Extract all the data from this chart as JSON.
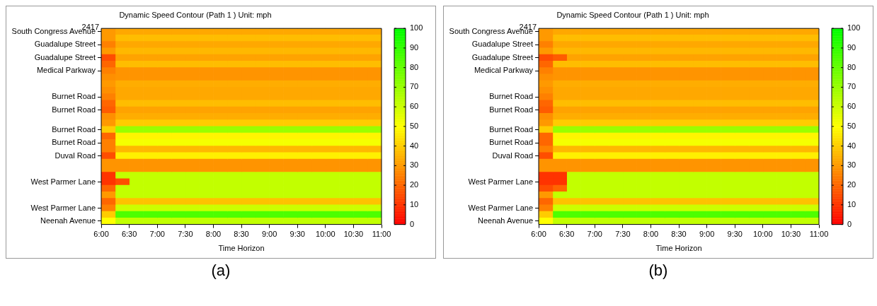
{
  "chart_data": [
    {
      "type": "heatmap",
      "title": "Dynamic Speed Contour (Path 1 ) Unit: mph",
      "xlabel": "Time Horizon",
      "x": [
        6.125,
        6.375,
        6.625,
        6.875,
        7.125,
        7.375,
        7.625,
        7.875,
        8.125,
        8.375,
        8.625,
        8.875,
        9.125,
        9.375,
        9.625,
        9.875,
        10.125,
        10.375,
        10.625,
        10.875
      ],
      "xlim": [
        6,
        11
      ],
      "xticks": [
        {
          "value": 6,
          "label": "6:00"
        },
        {
          "value": 6.5,
          "label": "6:30"
        },
        {
          "value": 7,
          "label": "7:00"
        },
        {
          "value": 7.5,
          "label": "7:30"
        },
        {
          "value": 8,
          "label": "8:00"
        },
        {
          "value": 8.5,
          "label": "8:30"
        },
        {
          "value": 9,
          "label": "9:00"
        },
        {
          "value": 9.5,
          "label": "9:30"
        },
        {
          "value": 10,
          "label": "10:00"
        },
        {
          "value": 10.5,
          "label": "10:30"
        },
        {
          "value": 11,
          "label": "11:00"
        }
      ],
      "y_categories": [
        "South Congress Avenue",
        null,
        "Guadalupe Street",
        null,
        "Guadalupe Street",
        null,
        "Medical Parkway",
        null,
        null,
        null,
        "Burnet Road",
        null,
        "Burnet Road",
        null,
        null,
        "Burnet Road",
        null,
        "Burnet Road",
        null,
        "Duval Road",
        null,
        null,
        null,
        "West Parmer Lane",
        null,
        null,
        null,
        "West Parmer Lane",
        null,
        "Neenah Avenue"
      ],
      "cells": [
        [
          30,
          33,
          33,
          33,
          33,
          33,
          33,
          33,
          33,
          33,
          33,
          33,
          33,
          33,
          33,
          33,
          33,
          33,
          33,
          33
        ],
        [
          30,
          37,
          37,
          37,
          37,
          37,
          37,
          37,
          37,
          37,
          37,
          37,
          37,
          37,
          37,
          37,
          37,
          37,
          37,
          37
        ],
        [
          25,
          33,
          33,
          33,
          33,
          33,
          33,
          33,
          33,
          33,
          33,
          33,
          33,
          33,
          33,
          33,
          33,
          33,
          33,
          33
        ],
        [
          30,
          36,
          36,
          36,
          36,
          36,
          36,
          36,
          36,
          36,
          36,
          36,
          36,
          36,
          36,
          36,
          36,
          36,
          36,
          36
        ],
        [
          15,
          32,
          32,
          32,
          32,
          32,
          32,
          32,
          32,
          32,
          32,
          32,
          32,
          32,
          32,
          32,
          32,
          32,
          32,
          32
        ],
        [
          20,
          37,
          37,
          37,
          37,
          37,
          37,
          37,
          37,
          37,
          37,
          37,
          37,
          37,
          37,
          37,
          37,
          37,
          37,
          37
        ],
        [
          25,
          29,
          29,
          29,
          29,
          29,
          29,
          29,
          29,
          29,
          29,
          29,
          29,
          29,
          29,
          29,
          29,
          29,
          29,
          29
        ],
        [
          28,
          29,
          29,
          29,
          29,
          29,
          29,
          29,
          29,
          29,
          29,
          29,
          29,
          29,
          29,
          29,
          29,
          29,
          29,
          29
        ],
        [
          30,
          34,
          34,
          34,
          34,
          34,
          34,
          34,
          34,
          34,
          34,
          34,
          34,
          34,
          34,
          34,
          34,
          34,
          34,
          34
        ],
        [
          28,
          33,
          33,
          33,
          33,
          33,
          33,
          33,
          33,
          33,
          33,
          33,
          33,
          33,
          33,
          33,
          33,
          33,
          33,
          33
        ],
        [
          25,
          33,
          33,
          33,
          33,
          33,
          33,
          33,
          33,
          33,
          33,
          33,
          33,
          33,
          33,
          33,
          33,
          33,
          33,
          33
        ],
        [
          20,
          37,
          37,
          37,
          37,
          37,
          37,
          37,
          37,
          37,
          37,
          37,
          37,
          37,
          37,
          37,
          37,
          37,
          37,
          37
        ],
        [
          18,
          32,
          32,
          32,
          32,
          32,
          32,
          32,
          32,
          32,
          32,
          32,
          32,
          32,
          32,
          32,
          32,
          32,
          32,
          32
        ],
        [
          28,
          34,
          34,
          34,
          34,
          34,
          34,
          34,
          34,
          34,
          34,
          34,
          34,
          34,
          34,
          34,
          34,
          34,
          34,
          34
        ],
        [
          30,
          40,
          40,
          40,
          40,
          40,
          40,
          40,
          40,
          40,
          40,
          40,
          40,
          40,
          40,
          40,
          40,
          40,
          40,
          40
        ],
        [
          40,
          70,
          70,
          70,
          70,
          70,
          70,
          70,
          70,
          70,
          70,
          70,
          70,
          70,
          70,
          70,
          70,
          70,
          70,
          70
        ],
        [
          20,
          48,
          48,
          48,
          48,
          48,
          48,
          48,
          48,
          48,
          48,
          48,
          48,
          48,
          48,
          48,
          48,
          48,
          48,
          48
        ],
        [
          25,
          52,
          52,
          52,
          52,
          52,
          52,
          52,
          52,
          52,
          52,
          52,
          52,
          52,
          52,
          52,
          52,
          52,
          52,
          52
        ],
        [
          25,
          36,
          36,
          36,
          36,
          36,
          36,
          36,
          36,
          36,
          36,
          36,
          36,
          36,
          36,
          36,
          36,
          36,
          36,
          36
        ],
        [
          15,
          47,
          47,
          47,
          47,
          47,
          47,
          47,
          47,
          47,
          47,
          47,
          47,
          47,
          47,
          47,
          47,
          47,
          47,
          47
        ],
        [
          29,
          29,
          29,
          29,
          29,
          29,
          29,
          29,
          29,
          29,
          29,
          29,
          29,
          29,
          29,
          29,
          29,
          29,
          29,
          29
        ],
        [
          29,
          29,
          29,
          29,
          29,
          29,
          29,
          29,
          29,
          29,
          29,
          29,
          29,
          29,
          29,
          29,
          29,
          29,
          29,
          29
        ],
        [
          10,
          62,
          62,
          62,
          62,
          62,
          62,
          62,
          62,
          62,
          62,
          62,
          62,
          62,
          62,
          62,
          62,
          62,
          62,
          62
        ],
        [
          10,
          15,
          62,
          62,
          62,
          62,
          62,
          62,
          62,
          62,
          62,
          62,
          62,
          62,
          62,
          62,
          62,
          62,
          62,
          62
        ],
        [
          20,
          62,
          62,
          62,
          62,
          62,
          62,
          62,
          62,
          62,
          62,
          62,
          62,
          62,
          62,
          62,
          62,
          62,
          62,
          62
        ],
        [
          30,
          62,
          62,
          62,
          62,
          62,
          62,
          62,
          62,
          62,
          62,
          62,
          62,
          62,
          62,
          62,
          62,
          62,
          62,
          62
        ],
        [
          20,
          38,
          38,
          38,
          38,
          38,
          38,
          38,
          38,
          38,
          38,
          38,
          38,
          38,
          38,
          38,
          38,
          38,
          38,
          38
        ],
        [
          25,
          60,
          60,
          60,
          60,
          60,
          60,
          60,
          60,
          60,
          60,
          60,
          60,
          60,
          60,
          60,
          60,
          60,
          60,
          60
        ],
        [
          40,
          85,
          85,
          85,
          85,
          85,
          85,
          85,
          85,
          85,
          85,
          85,
          85,
          85,
          85,
          85,
          85,
          85,
          85,
          85
        ],
        [
          50,
          62,
          62,
          62,
          62,
          62,
          62,
          62,
          62,
          62,
          62,
          62,
          62,
          62,
          62,
          62,
          62,
          62,
          62,
          62
        ]
      ],
      "clim": [
        0,
        100
      ],
      "cticks": [
        0,
        10,
        20,
        30,
        40,
        50,
        60,
        70,
        80,
        90,
        100
      ],
      "annotations": [
        "2417",
        "(a)"
      ]
    },
    {
      "type": "heatmap",
      "title": "Dynamic Speed Contour (Path 1 ) Unit: mph",
      "xlabel": "Time Horizon",
      "x": [
        6.125,
        6.375,
        6.625,
        6.875,
        7.125,
        7.375,
        7.625,
        7.875,
        8.125,
        8.375,
        8.625,
        8.875,
        9.125,
        9.375,
        9.625,
        9.875,
        10.125,
        10.375,
        10.625,
        10.875
      ],
      "xlim": [
        6,
        11
      ],
      "xticks": [
        {
          "value": 6,
          "label": "6:00"
        },
        {
          "value": 6.5,
          "label": "6:30"
        },
        {
          "value": 7,
          "label": "7:00"
        },
        {
          "value": 7.5,
          "label": "7:30"
        },
        {
          "value": 8,
          "label": "8:00"
        },
        {
          "value": 8.5,
          "label": "8:30"
        },
        {
          "value": 9,
          "label": "9:00"
        },
        {
          "value": 9.5,
          "label": "9:30"
        },
        {
          "value": 10,
          "label": "10:00"
        },
        {
          "value": 10.5,
          "label": "10:30"
        },
        {
          "value": 11,
          "label": "11:00"
        }
      ],
      "y_categories": [
        "South Congress Avenue",
        null,
        "Guadalupe Street",
        null,
        "Guadalupe Street",
        null,
        "Medical Parkway",
        null,
        null,
        null,
        "Burnet Road",
        null,
        "Burnet Road",
        null,
        null,
        "Burnet Road",
        null,
        "Burnet Road",
        null,
        "Duval Road",
        null,
        null,
        null,
        "West Parmer Lane",
        null,
        null,
        null,
        "West Parmer Lane",
        null,
        "Neenah Avenue"
      ],
      "cells": [
        [
          30,
          33,
          33,
          33,
          33,
          33,
          33,
          33,
          33,
          33,
          33,
          33,
          33,
          33,
          33,
          33,
          33,
          33,
          33,
          33
        ],
        [
          30,
          37,
          37,
          37,
          37,
          37,
          37,
          37,
          37,
          37,
          37,
          37,
          37,
          37,
          37,
          37,
          37,
          37,
          37,
          37
        ],
        [
          25,
          33,
          33,
          33,
          33,
          33,
          33,
          33,
          33,
          33,
          33,
          33,
          33,
          33,
          33,
          33,
          33,
          33,
          33,
          33
        ],
        [
          30,
          36,
          36,
          36,
          36,
          36,
          36,
          36,
          36,
          36,
          36,
          36,
          36,
          36,
          36,
          36,
          36,
          36,
          36,
          36
        ],
        [
          15,
          18,
          32,
          32,
          32,
          32,
          32,
          32,
          32,
          32,
          32,
          32,
          32,
          32,
          32,
          32,
          32,
          32,
          32,
          32
        ],
        [
          20,
          37,
          37,
          37,
          37,
          37,
          37,
          37,
          37,
          37,
          37,
          37,
          37,
          37,
          37,
          37,
          37,
          37,
          37,
          37
        ],
        [
          25,
          29,
          29,
          29,
          29,
          29,
          29,
          29,
          29,
          29,
          29,
          29,
          29,
          29,
          29,
          29,
          29,
          29,
          29,
          29
        ],
        [
          28,
          29,
          29,
          29,
          29,
          29,
          29,
          29,
          29,
          29,
          29,
          29,
          29,
          29,
          29,
          29,
          29,
          29,
          29,
          29
        ],
        [
          30,
          34,
          34,
          34,
          34,
          34,
          34,
          34,
          34,
          34,
          34,
          34,
          34,
          34,
          34,
          34,
          34,
          34,
          34,
          34
        ],
        [
          28,
          33,
          33,
          33,
          33,
          33,
          33,
          33,
          33,
          33,
          33,
          33,
          33,
          33,
          33,
          33,
          33,
          33,
          33,
          33
        ],
        [
          25,
          33,
          33,
          33,
          33,
          33,
          33,
          33,
          33,
          33,
          33,
          33,
          33,
          33,
          33,
          33,
          33,
          33,
          33,
          33
        ],
        [
          20,
          37,
          37,
          37,
          37,
          37,
          37,
          37,
          37,
          37,
          37,
          37,
          37,
          37,
          37,
          37,
          37,
          37,
          37,
          37
        ],
        [
          18,
          32,
          32,
          32,
          32,
          32,
          32,
          32,
          32,
          32,
          32,
          32,
          32,
          32,
          32,
          32,
          32,
          32,
          32,
          32
        ],
        [
          28,
          34,
          34,
          34,
          34,
          34,
          34,
          34,
          34,
          34,
          34,
          34,
          34,
          34,
          34,
          34,
          34,
          34,
          34,
          34
        ],
        [
          30,
          40,
          40,
          40,
          40,
          40,
          40,
          40,
          40,
          40,
          40,
          40,
          40,
          40,
          40,
          40,
          40,
          40,
          40,
          40
        ],
        [
          40,
          70,
          70,
          70,
          70,
          70,
          70,
          70,
          70,
          70,
          70,
          70,
          70,
          70,
          70,
          70,
          70,
          70,
          70,
          70
        ],
        [
          20,
          48,
          48,
          48,
          48,
          48,
          48,
          48,
          48,
          48,
          48,
          48,
          48,
          48,
          48,
          48,
          48,
          48,
          48,
          48
        ],
        [
          20,
          52,
          52,
          52,
          52,
          52,
          52,
          52,
          52,
          52,
          52,
          52,
          52,
          52,
          52,
          52,
          52,
          52,
          52,
          52
        ],
        [
          25,
          36,
          36,
          36,
          36,
          36,
          36,
          36,
          36,
          36,
          36,
          36,
          36,
          36,
          36,
          36,
          36,
          36,
          36,
          36
        ],
        [
          15,
          47,
          47,
          47,
          47,
          47,
          47,
          47,
          47,
          47,
          47,
          47,
          47,
          47,
          47,
          47,
          47,
          47,
          47,
          47
        ],
        [
          29,
          29,
          29,
          29,
          29,
          29,
          29,
          29,
          29,
          29,
          29,
          29,
          29,
          29,
          29,
          29,
          29,
          29,
          29,
          29
        ],
        [
          29,
          29,
          29,
          29,
          29,
          29,
          29,
          29,
          29,
          29,
          29,
          29,
          29,
          29,
          29,
          29,
          29,
          29,
          29,
          29
        ],
        [
          10,
          10,
          62,
          62,
          62,
          62,
          62,
          62,
          62,
          62,
          62,
          62,
          62,
          62,
          62,
          62,
          62,
          62,
          62,
          62
        ],
        [
          10,
          10,
          62,
          62,
          62,
          62,
          62,
          62,
          62,
          62,
          62,
          62,
          62,
          62,
          62,
          62,
          62,
          62,
          62,
          62
        ],
        [
          15,
          20,
          62,
          62,
          62,
          62,
          62,
          62,
          62,
          62,
          62,
          62,
          62,
          62,
          62,
          62,
          62,
          62,
          62,
          62
        ],
        [
          30,
          62,
          62,
          62,
          62,
          62,
          62,
          62,
          62,
          62,
          62,
          62,
          62,
          62,
          62,
          62,
          62,
          62,
          62,
          62
        ],
        [
          20,
          38,
          38,
          38,
          38,
          38,
          38,
          38,
          38,
          38,
          38,
          38,
          38,
          38,
          38,
          38,
          38,
          38,
          38,
          38
        ],
        [
          25,
          60,
          60,
          60,
          60,
          60,
          60,
          60,
          60,
          60,
          60,
          60,
          60,
          60,
          60,
          60,
          60,
          60,
          60,
          60
        ],
        [
          40,
          85,
          85,
          85,
          85,
          85,
          85,
          85,
          85,
          85,
          85,
          85,
          85,
          85,
          85,
          85,
          85,
          85,
          85,
          85
        ],
        [
          50,
          62,
          62,
          62,
          62,
          62,
          62,
          62,
          62,
          62,
          62,
          62,
          62,
          62,
          62,
          62,
          62,
          62,
          62,
          62
        ]
      ],
      "clim": [
        0,
        100
      ],
      "cticks": [
        0,
        10,
        20,
        30,
        40,
        50,
        60,
        70,
        80,
        90,
        100
      ],
      "annotations": [
        "2417",
        "(b)"
      ]
    }
  ]
}
